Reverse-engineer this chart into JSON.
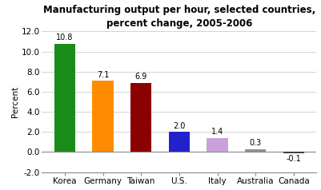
{
  "categories": [
    "Korea",
    "Germany",
    "Taiwan",
    "U.S.",
    "Italy",
    "Australia",
    "Canada"
  ],
  "values": [
    10.8,
    7.1,
    6.9,
    2.0,
    1.4,
    0.3,
    -0.1
  ],
  "bar_colors": [
    "#1a8c1a",
    "#ff8c00",
    "#8b0000",
    "#2222cc",
    "#c9a0dc",
    "#909090",
    "#404040"
  ],
  "title_line1": "Manufacturing output per hour, selected countries,",
  "title_line2": "percent change, 2005-2006",
  "ylabel": "Percent",
  "ylim": [
    -2.0,
    12.0
  ],
  "yticks": [
    -2.0,
    0.0,
    2.0,
    4.0,
    6.0,
    8.0,
    10.0,
    12.0
  ],
  "title_fontsize": 8.5,
  "label_fontsize": 7.5,
  "tick_fontsize": 7.5,
  "value_fontsize": 7.0,
  "background_color": "#ffffff"
}
